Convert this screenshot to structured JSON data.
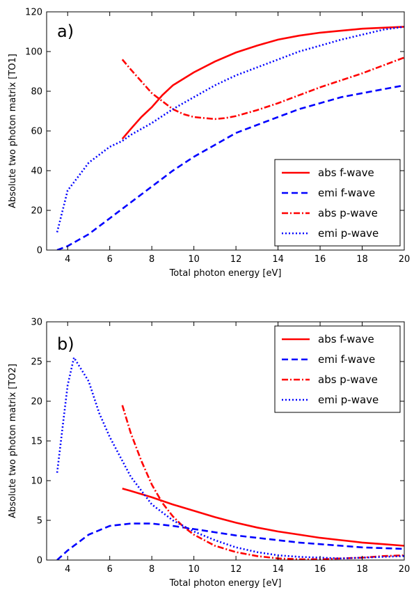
{
  "chart_data": [
    {
      "type": "line",
      "panel_label": "a)",
      "xlabel": "Total photon energy [eV]",
      "ylabel": "Absolute two photon matrix [TO1]",
      "xlim": [
        3,
        20
      ],
      "ylim": [
        0,
        120
      ],
      "xticks": [
        4,
        6,
        8,
        10,
        12,
        14,
        16,
        18,
        20
      ],
      "yticks": [
        0,
        20,
        40,
        60,
        80,
        100,
        120
      ],
      "grid": false,
      "legend_position": "lower-right",
      "series": [
        {
          "name": "abs f-wave",
          "color": "#ff0000",
          "style": "solid",
          "x": [
            6.6,
            7.0,
            7.5,
            8.0,
            8.5,
            9.0,
            10.0,
            11.0,
            12.0,
            13.0,
            14.0,
            15.0,
            16.0,
            17.0,
            18.0,
            19.0,
            20.0
          ],
          "y": [
            56,
            61,
            67,
            72,
            78,
            83,
            89.5,
            95,
            99.5,
            103,
            106,
            108,
            109.5,
            110.5,
            111.5,
            112,
            112.5
          ]
        },
        {
          "name": "emi f-wave",
          "color": "#0000ff",
          "style": "dashed",
          "x": [
            3.5,
            4.0,
            5.0,
            6.0,
            7.0,
            8.0,
            9.0,
            10.0,
            11.0,
            12.0,
            13.0,
            14.0,
            15.0,
            16.0,
            17.0,
            18.0,
            19.0,
            20.0
          ],
          "y": [
            0,
            2,
            8,
            16,
            24,
            32,
            40,
            47,
            53,
            59,
            63,
            67,
            71,
            74,
            77,
            79,
            81,
            83
          ]
        },
        {
          "name": "abs p-wave",
          "color": "#ff0000",
          "style": "dashdot",
          "x": [
            6.6,
            7.0,
            7.5,
            8.0,
            8.5,
            9.0,
            9.5,
            10.0,
            10.5,
            11.0,
            11.5,
            12.0,
            13.0,
            14.0,
            15.0,
            16.0,
            17.0,
            18.0,
            19.0,
            20.0
          ],
          "y": [
            96,
            91,
            85,
            79,
            75,
            71,
            68.5,
            67,
            66.5,
            66,
            66.5,
            67.5,
            70.5,
            74,
            78,
            82,
            85.5,
            89,
            93,
            97
          ]
        },
        {
          "name": "emi p-wave",
          "color": "#0000ff",
          "style": "dotted",
          "x": [
            3.5,
            4.0,
            4.5,
            5.0,
            5.5,
            6.0,
            6.6,
            7.0,
            8.0,
            9.0,
            10.0,
            11.0,
            12.0,
            13.0,
            14.0,
            15.0,
            16.0,
            17.0,
            18.0,
            19.0,
            20.0
          ],
          "y": [
            9,
            30,
            37,
            44,
            48,
            52,
            55,
            58,
            64,
            71,
            77,
            83,
            88,
            92,
            96,
            100,
            103,
            106,
            108.5,
            111,
            112.5
          ]
        }
      ]
    },
    {
      "type": "line",
      "panel_label": "b)",
      "xlabel": "Total photon energy [eV]",
      "ylabel": "Absolute two photon matrix [TO2]",
      "xlim": [
        3,
        20
      ],
      "ylim": [
        0,
        30
      ],
      "xticks": [
        4,
        6,
        8,
        10,
        12,
        14,
        16,
        18,
        20
      ],
      "yticks": [
        0,
        5,
        10,
        15,
        20,
        25,
        30
      ],
      "grid": false,
      "legend_position": "top-right",
      "series": [
        {
          "name": "abs f-wave",
          "color": "#ff0000",
          "style": "solid",
          "x": [
            6.6,
            7.0,
            8.0,
            9.0,
            10.0,
            11.0,
            12.0,
            13.0,
            14.0,
            15.0,
            16.0,
            17.0,
            18.0,
            19.0,
            20.0
          ],
          "y": [
            9.0,
            8.7,
            7.9,
            7.0,
            6.2,
            5.4,
            4.7,
            4.1,
            3.6,
            3.2,
            2.8,
            2.5,
            2.2,
            2.0,
            1.8
          ]
        },
        {
          "name": "emi f-wave",
          "color": "#0000ff",
          "style": "dashed",
          "x": [
            3.5,
            4.0,
            5.0,
            6.0,
            7.0,
            8.0,
            9.0,
            10.0,
            11.0,
            12.0,
            13.0,
            14.0,
            15.0,
            16.0,
            17.0,
            18.0,
            19.0,
            20.0
          ],
          "y": [
            0.0,
            1.2,
            3.2,
            4.3,
            4.6,
            4.6,
            4.3,
            3.9,
            3.5,
            3.1,
            2.8,
            2.5,
            2.2,
            2.0,
            1.8,
            1.6,
            1.5,
            1.4
          ]
        },
        {
          "name": "abs p-wave",
          "color": "#ff0000",
          "style": "dashdot",
          "x": [
            6.6,
            7.0,
            7.5,
            8.0,
            8.5,
            9.0,
            9.5,
            10.0,
            11.0,
            12.0,
            13.0,
            14.0,
            15.0,
            16.0,
            17.0,
            18.0,
            19.0,
            20.0
          ],
          "y": [
            19.5,
            16.0,
            12.5,
            9.5,
            7.2,
            5.5,
            4.2,
            3.2,
            1.8,
            1.0,
            0.5,
            0.2,
            0.1,
            0.1,
            0.2,
            0.3,
            0.5,
            0.6
          ]
        },
        {
          "name": "emi p-wave",
          "color": "#0000ff",
          "style": "dotted",
          "x": [
            3.5,
            4.0,
            4.3,
            5.0,
            5.5,
            6.0,
            6.6,
            7.0,
            8.0,
            9.0,
            10.0,
            11.0,
            12.0,
            13.0,
            14.0,
            15.0,
            16.0,
            17.0,
            18.0,
            19.0,
            20.0
          ],
          "y": [
            11,
            22,
            25.5,
            22.5,
            18.5,
            15.5,
            12.5,
            10.5,
            7.0,
            5.0,
            3.6,
            2.5,
            1.6,
            1.0,
            0.6,
            0.4,
            0.3,
            0.2,
            0.3,
            0.4,
            0.5
          ]
        }
      ]
    }
  ]
}
